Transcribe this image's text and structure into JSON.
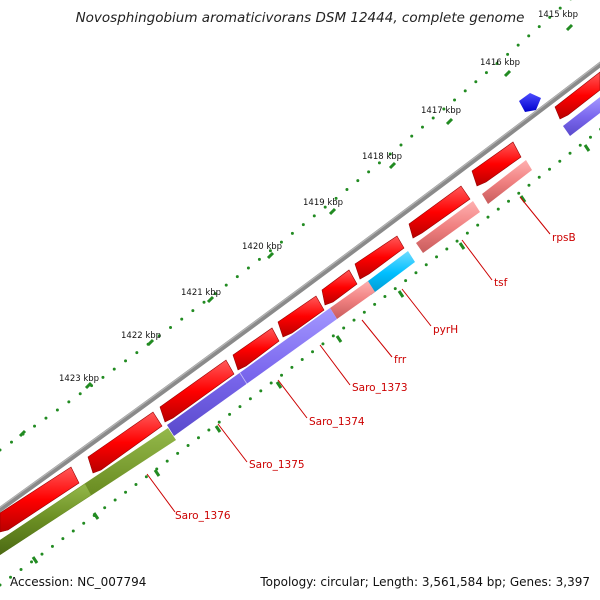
{
  "title": "Novosphingobium aromaticivorans DSM 12444, complete genome",
  "footer": {
    "accession": "Accession: NC_007794",
    "stats": "Topology: circular; Length: 3,561,584 bp; Genes: 3,397"
  },
  "scale_labels": [
    "1415 kbp",
    "1416 kbp",
    "1417 kbp",
    "1418 kbp",
    "1419 kbp",
    "1420 kbp",
    "1421 kbp",
    "1422 kbp",
    "1423 kbp"
  ],
  "gene_labels": [
    "rpsB",
    "tsf",
    "pyrH",
    "frr",
    "Saro_1373",
    "Saro_1374",
    "Saro_1375",
    "Saro_1376"
  ],
  "colors": {
    "backbone": "#7f7f7f",
    "cds_arrow": "#ff0000",
    "rna_arrow": "#0000ff",
    "feature_light_red": "#f08080",
    "feature_purple": "#7b68ee",
    "feature_cyan": "#00bfff",
    "feature_green": "#6b8e23",
    "tick": "#228b22",
    "label": "#cc0000"
  }
}
